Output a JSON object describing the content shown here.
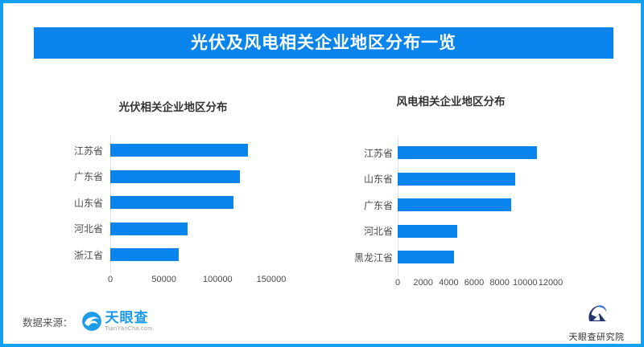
{
  "page": {
    "title": "光伏及风电相关企业地区分布一览"
  },
  "colors": {
    "primary_blue": "#0884ec",
    "frame_blue": "#14a0f2",
    "tianyancha_blue": "#1e9be9",
    "research_navy": "#25356e",
    "axis_text": "#4a4a4a"
  },
  "chart_data": [
    {
      "type": "bar",
      "orientation": "horizontal",
      "title": "光伏相关企业地区分布",
      "categories": [
        "江苏省",
        "广东省",
        "山东省",
        "河北省",
        "浙江省"
      ],
      "values": [
        128000,
        121000,
        115000,
        72000,
        64000
      ],
      "xticks": [
        0,
        50000,
        100000,
        150000
      ],
      "xlim": [
        0,
        150000
      ],
      "bar_color": "#0884ec",
      "grid": false,
      "legend": "none"
    },
    {
      "type": "bar",
      "orientation": "horizontal",
      "title": "风电相关企业地区分布",
      "categories": [
        "江苏省",
        "山东省",
        "广东省",
        "河北省",
        "黑龙江省"
      ],
      "values": [
        10900,
        9200,
        8900,
        4700,
        4400
      ],
      "xticks": [
        0,
        2000,
        4000,
        6000,
        8000,
        10000,
        12000
      ],
      "xlim": [
        0,
        12000
      ],
      "bar_color": "#0884ec",
      "grid": false,
      "legend": "none"
    }
  ],
  "footer": {
    "source_label": "数据来源：",
    "source_logo_text": "天眼查",
    "source_logo_sub": "TianYanCha.com",
    "research_logo_text": "天眼查研究院"
  }
}
